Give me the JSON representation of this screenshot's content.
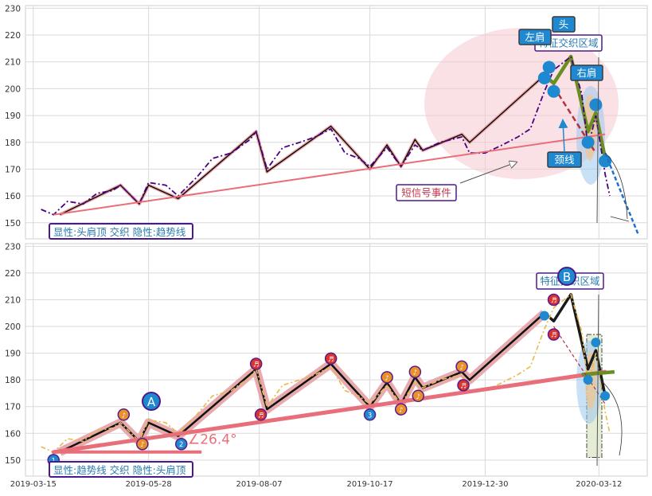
{
  "chart_data": {
    "type": "line",
    "x_ticks": [
      "2019-03-15",
      "2019-05-28",
      "2019-08-07",
      "2019-10-17",
      "2019-12-30",
      "2020-03-12"
    ],
    "y_ticks": [
      150,
      160,
      170,
      180,
      190,
      200,
      210,
      220,
      230
    ],
    "ylim": [
      144,
      231
    ],
    "x_range": [
      "2019-03-10",
      "2020-04-12"
    ],
    "grid": true,
    "panels": [
      {
        "id": "top",
        "caption": "显性:头肩顶 交织 隐性:趋势线",
        "series": [
          {
            "kind": "zigzag",
            "color": "#000000",
            "points": [
              [
                "2019-04-01",
                153
              ],
              [
                "2019-05-10",
                164
              ],
              [
                "2019-05-22",
                157
              ],
              [
                "2019-05-28",
                164
              ],
              [
                "2019-06-16",
                159
              ],
              [
                "2019-08-05",
                184
              ],
              [
                "2019-08-12",
                169
              ],
              [
                "2019-09-22",
                186
              ],
              [
                "2019-10-17",
                170
              ],
              [
                "2019-10-28",
                179
              ],
              [
                "2019-11-06",
                171
              ],
              [
                "2019-11-15",
                181
              ],
              [
                "2019-11-20",
                177
              ],
              [
                "2019-12-15",
                183
              ],
              [
                "2019-12-20",
                180
              ],
              [
                "2020-02-06",
                205
              ],
              [
                "2020-02-12",
                202
              ],
              [
                "2020-02-23",
                212
              ],
              [
                "2020-03-05",
                184
              ],
              [
                "2020-03-10",
                191
              ],
              [
                "2020-03-16",
                174
              ]
            ]
          },
          {
            "kind": "price",
            "color": "#4b0082",
            "points": [
              [
                "2019-03-20",
                155
              ],
              [
                "2019-03-28",
                153
              ],
              [
                "2019-04-06",
                158
              ],
              [
                "2019-04-16",
                157
              ],
              [
                "2019-04-25",
                161
              ],
              [
                "2019-05-05",
                162
              ],
              [
                "2019-05-10",
                164
              ],
              [
                "2019-05-22",
                157
              ],
              [
                "2019-05-28",
                165
              ],
              [
                "2019-06-08",
                164
              ],
              [
                "2019-06-16",
                160
              ],
              [
                "2019-06-28",
                167
              ],
              [
                "2019-07-08",
                174
              ],
              [
                "2019-07-20",
                176
              ],
              [
                "2019-08-01",
                181
              ],
              [
                "2019-08-05",
                184
              ],
              [
                "2019-08-12",
                170
              ],
              [
                "2019-08-22",
                178
              ],
              [
                "2019-09-02",
                180
              ],
              [
                "2019-09-12",
                182
              ],
              [
                "2019-09-22",
                185
              ],
              [
                "2019-10-01",
                176
              ],
              [
                "2019-10-10",
                174
              ],
              [
                "2019-10-17",
                171
              ],
              [
                "2019-10-28",
                178
              ],
              [
                "2019-11-06",
                171
              ],
              [
                "2019-11-15",
                179
              ],
              [
                "2019-11-20",
                177
              ],
              [
                "2019-12-01",
                180
              ],
              [
                "2019-12-15",
                182
              ],
              [
                "2019-12-20",
                176
              ],
              [
                "2019-12-30",
                176
              ],
              [
                "2020-01-10",
                179
              ],
              [
                "2020-01-20",
                182
              ],
              [
                "2020-01-28",
                185
              ],
              [
                "2020-02-06",
                199
              ],
              [
                "2020-02-12",
                207
              ],
              [
                "2020-02-23",
                212
              ],
              [
                "2020-03-01",
                198
              ],
              [
                "2020-03-05",
                178
              ],
              [
                "2020-03-10",
                190
              ],
              [
                "2020-03-16",
                168
              ],
              [
                "2020-03-19",
                160
              ]
            ]
          }
        ],
        "trendline": [
          [
            "2019-03-28",
            153
          ],
          [
            "2020-03-16",
            183
          ]
        ],
        "neckline": [
          [
            "2020-02-15",
            198
          ],
          [
            "2020-03-10",
            176
          ]
        ],
        "regions": [
          {
            "label": "特征交织区域"
          }
        ],
        "labels": {
          "head": "头",
          "left_shoulder": "左肩",
          "right_shoulder": "右肩",
          "neckline": "颈线",
          "event": "短信号事件"
        }
      },
      {
        "id": "bottom",
        "caption": "显性:趋势线 交织 隐性:头肩顶",
        "series": [
          {
            "kind": "zigzag",
            "color": "#000000",
            "points": [
              [
                "2019-04-01",
                153
              ],
              [
                "2019-05-10",
                164
              ],
              [
                "2019-05-22",
                157
              ],
              [
                "2019-05-28",
                164
              ],
              [
                "2019-06-16",
                159
              ],
              [
                "2019-08-05",
                184
              ],
              [
                "2019-08-12",
                169
              ],
              [
                "2019-09-22",
                186
              ],
              [
                "2019-10-17",
                170
              ],
              [
                "2019-10-28",
                179
              ],
              [
                "2019-11-06",
                171
              ],
              [
                "2019-11-15",
                181
              ],
              [
                "2019-11-20",
                177
              ],
              [
                "2019-12-15",
                183
              ],
              [
                "2019-12-20",
                180
              ],
              [
                "2020-02-06",
                205
              ],
              [
                "2020-02-12",
                202
              ],
              [
                "2020-02-23",
                212
              ],
              [
                "2020-03-05",
                184
              ],
              [
                "2020-03-10",
                191
              ],
              [
                "2020-03-16",
                174
              ]
            ]
          },
          {
            "kind": "price",
            "color": "#e8b84a",
            "points": [
              [
                "2019-03-20",
                155
              ],
              [
                "2019-03-28",
                153
              ],
              [
                "2019-04-06",
                158
              ],
              [
                "2019-04-16",
                157
              ],
              [
                "2019-04-25",
                161
              ],
              [
                "2019-05-05",
                162
              ],
              [
                "2019-05-10",
                164
              ],
              [
                "2019-05-22",
                157
              ],
              [
                "2019-05-28",
                165
              ],
              [
                "2019-06-08",
                164
              ],
              [
                "2019-06-16",
                160
              ],
              [
                "2019-06-28",
                167
              ],
              [
                "2019-07-08",
                174
              ],
              [
                "2019-07-20",
                176
              ],
              [
                "2019-08-01",
                181
              ],
              [
                "2019-08-05",
                184
              ],
              [
                "2019-08-12",
                170
              ],
              [
                "2019-08-22",
                178
              ],
              [
                "2019-09-02",
                180
              ],
              [
                "2019-09-12",
                182
              ],
              [
                "2019-09-22",
                185
              ],
              [
                "2019-10-01",
                176
              ],
              [
                "2019-10-10",
                174
              ],
              [
                "2019-10-17",
                171
              ],
              [
                "2019-10-28",
                178
              ],
              [
                "2019-11-06",
                171
              ],
              [
                "2019-11-15",
                179
              ],
              [
                "2019-11-20",
                177
              ],
              [
                "2019-12-01",
                180
              ],
              [
                "2019-12-15",
                182
              ],
              [
                "2019-12-20",
                176
              ],
              [
                "2019-12-30",
                176
              ],
              [
                "2020-01-10",
                179
              ],
              [
                "2020-01-20",
                182
              ],
              [
                "2020-01-28",
                185
              ],
              [
                "2020-02-06",
                199
              ],
              [
                "2020-02-12",
                207
              ],
              [
                "2020-02-23",
                212
              ],
              [
                "2020-03-01",
                198
              ],
              [
                "2020-03-05",
                178
              ],
              [
                "2020-03-10",
                190
              ],
              [
                "2020-03-16",
                168
              ],
              [
                "2020-03-19",
                160
              ]
            ]
          }
        ],
        "trendline": [
          [
            "2019-03-28",
            153
          ],
          [
            "2020-03-16",
            183
          ]
        ],
        "angle_label": "∠26.4°",
        "regions": [
          {
            "label": "特征交织区域"
          }
        ],
        "labels": {
          "point_a": "A",
          "point_b": "B"
        },
        "markers": [
          [
            "2019-03-28",
            150,
            "1"
          ],
          [
            "2019-05-12",
            167,
            "♪"
          ],
          [
            "2019-05-24",
            156,
            "♪"
          ],
          [
            "2019-06-18",
            156,
            "2"
          ],
          [
            "2019-08-05",
            186,
            "♬"
          ],
          [
            "2019-08-08",
            167,
            "♬"
          ],
          [
            "2019-09-22",
            188,
            "♬"
          ],
          [
            "2019-10-17",
            167,
            "3"
          ],
          [
            "2019-10-28",
            181,
            "♪"
          ],
          [
            "2019-11-06",
            169,
            "♪"
          ],
          [
            "2019-11-15",
            183,
            "♪"
          ],
          [
            "2019-11-17",
            174,
            "♪"
          ],
          [
            "2019-12-15",
            185,
            "♪"
          ],
          [
            "2019-12-16",
            178,
            "♬"
          ],
          [
            "2020-02-12",
            210,
            "♬"
          ],
          [
            "2020-02-12",
            197,
            "♬"
          ]
        ]
      }
    ]
  }
}
